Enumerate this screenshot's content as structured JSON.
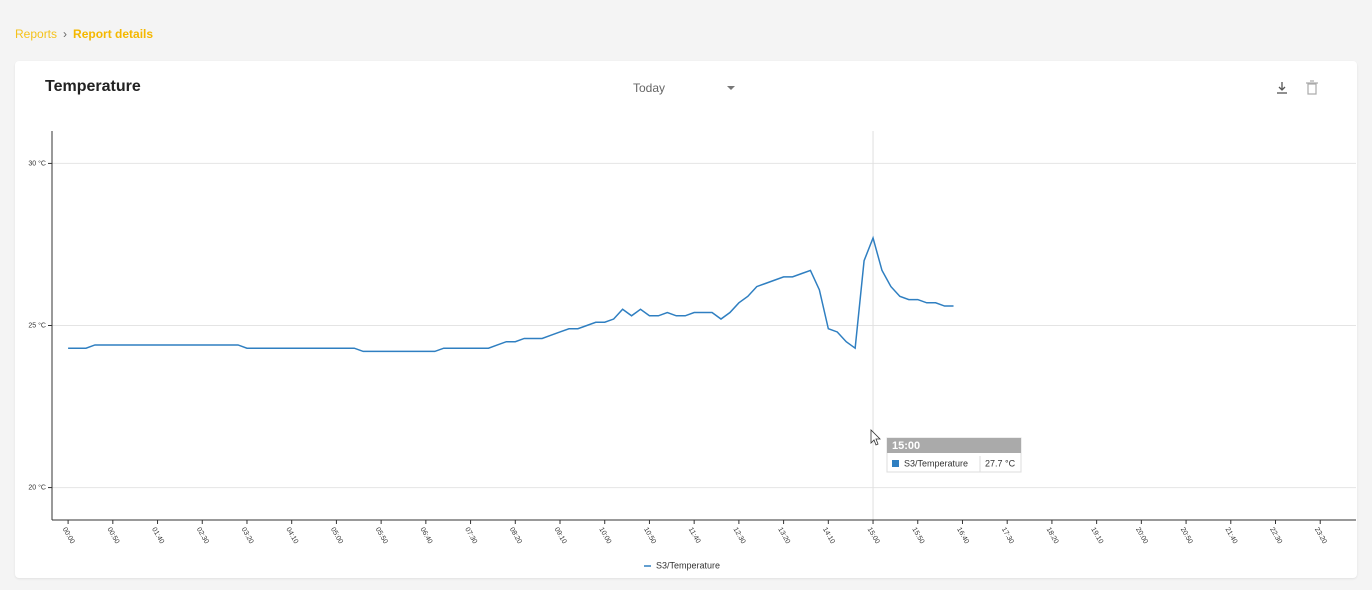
{
  "breadcrumb": {
    "items": [
      "Reports",
      "Report details"
    ]
  },
  "card": {
    "title": "Temperature",
    "period": "Today"
  },
  "tooltip": {
    "title": "15:00",
    "value": "27.7 °C"
  },
  "chart_data": {
    "type": "line",
    "x": [
      0,
      10,
      20,
      30,
      40,
      50,
      60,
      70,
      80,
      90,
      100,
      110,
      120,
      130,
      140,
      150,
      160,
      170,
      180,
      190,
      200,
      210,
      220,
      230,
      240,
      250,
      260,
      270,
      280,
      290,
      300,
      310,
      320,
      330,
      340,
      350,
      360,
      370,
      380,
      390,
      400,
      410,
      420,
      430,
      440,
      450,
      460,
      470,
      480,
      490,
      500,
      510,
      520,
      530,
      540,
      550,
      560,
      570,
      580,
      590,
      600,
      610,
      620,
      630,
      640,
      650,
      660,
      670,
      680,
      690,
      700,
      710,
      720,
      730,
      740,
      750,
      760,
      770,
      780,
      790,
      800,
      810,
      820,
      830,
      840,
      850,
      860,
      870,
      880,
      890,
      900,
      910,
      920,
      930,
      940,
      950,
      960,
      970,
      980,
      990
    ],
    "series": [
      {
        "name": "S3/Temperature",
        "color": "#2f7fc1",
        "values": [
          24.3,
          24.3,
          24.3,
          24.4,
          24.4,
          24.4,
          24.4,
          24.4,
          24.4,
          24.4,
          24.4,
          24.4,
          24.4,
          24.4,
          24.4,
          24.4,
          24.4,
          24.4,
          24.4,
          24.4,
          24.3,
          24.3,
          24.3,
          24.3,
          24.3,
          24.3,
          24.3,
          24.3,
          24.3,
          24.3,
          24.3,
          24.3,
          24.3,
          24.2,
          24.2,
          24.2,
          24.2,
          24.2,
          24.2,
          24.2,
          24.2,
          24.2,
          24.3,
          24.3,
          24.3,
          24.3,
          24.3,
          24.3,
          24.4,
          24.5,
          24.5,
          24.6,
          24.6,
          24.6,
          24.7,
          24.8,
          24.9,
          24.9,
          25.0,
          25.1,
          25.1,
          25.2,
          25.5,
          25.3,
          25.5,
          25.3,
          25.3,
          25.4,
          25.3,
          25.3,
          25.4,
          25.4,
          25.4,
          25.2,
          25.4,
          25.7,
          25.9,
          26.2,
          26.3,
          26.4,
          26.5,
          26.5,
          26.6,
          26.7,
          26.1,
          24.9,
          24.8,
          24.5,
          24.3,
          27.0,
          27.7,
          26.7,
          26.2,
          25.9,
          25.8,
          25.8,
          25.7,
          25.7,
          25.6,
          25.6
        ]
      }
    ],
    "xlim": [
      -18,
      1440
    ],
    "xticks": [
      {
        "value": 0,
        "label": "00:00"
      },
      {
        "value": 50,
        "label": "00:50"
      },
      {
        "value": 100,
        "label": "01:40"
      },
      {
        "value": 150,
        "label": "02:30"
      },
      {
        "value": 200,
        "label": "03:20"
      },
      {
        "value": 250,
        "label": "04:10"
      },
      {
        "value": 300,
        "label": "05:00"
      },
      {
        "value": 350,
        "label": "05:50"
      },
      {
        "value": 400,
        "label": "06:40"
      },
      {
        "value": 450,
        "label": "07:30"
      },
      {
        "value": 500,
        "label": "08:20"
      },
      {
        "value": 550,
        "label": "09:10"
      },
      {
        "value": 600,
        "label": "10:00"
      },
      {
        "value": 650,
        "label": "10:50"
      },
      {
        "value": 700,
        "label": "11:40"
      },
      {
        "value": 750,
        "label": "12:30"
      },
      {
        "value": 800,
        "label": "13:20"
      },
      {
        "value": 850,
        "label": "14:10"
      },
      {
        "value": 900,
        "label": "15:00"
      },
      {
        "value": 950,
        "label": "15:50"
      },
      {
        "value": 1000,
        "label": "16:40"
      },
      {
        "value": 1050,
        "label": "17:30"
      },
      {
        "value": 1100,
        "label": "18:20"
      },
      {
        "value": 1150,
        "label": "19:10"
      },
      {
        "value": 1200,
        "label": "20:00"
      },
      {
        "value": 1250,
        "label": "20:50"
      },
      {
        "value": 1300,
        "label": "21:40"
      },
      {
        "value": 1350,
        "label": "22:30"
      },
      {
        "value": 1400,
        "label": "23:20"
      }
    ],
    "ylim": [
      19,
      31
    ],
    "yticks": [
      {
        "value": 20,
        "label": "20 °C"
      },
      {
        "value": 25,
        "label": "25 °C"
      },
      {
        "value": 30,
        "label": "30 °C"
      }
    ],
    "grid": true
  }
}
